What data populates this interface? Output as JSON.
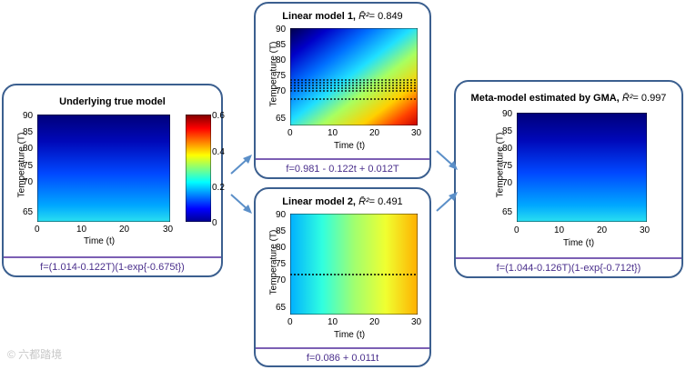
{
  "colormap_ticks": [
    "0.6",
    "0.4",
    "0.2",
    "0"
  ],
  "panels": {
    "true_model": {
      "title": "Underlying true model",
      "ylabel": "Temperature (T)",
      "xlabel": "Time (t)",
      "yticks": [
        "90",
        "85",
        "80",
        "75",
        "70",
        "65"
      ],
      "xticks": [
        "0",
        "10",
        "20",
        "30"
      ],
      "formula": "f=(1.014-0.122T)(1-exp{-0.675t})"
    },
    "linear1": {
      "title": "Linear model 1,",
      "r2_symbol": "R̄²",
      "r2_value": "= 0.849",
      "ylabel": "Temperature (T)",
      "xlabel": "Time (t)",
      "yticks": [
        "90",
        "85",
        "80",
        "75",
        "70",
        "65"
      ],
      "xticks": [
        "0",
        "10",
        "20",
        "30"
      ],
      "formula": "f=0.981 - 0.122t + 0.012T"
    },
    "linear2": {
      "title": "Linear model 2,",
      "r2_symbol": "R̄²",
      "r2_value": "= 0.491",
      "ylabel": "Temperature (T)",
      "xlabel": "Time (t)",
      "yticks": [
        "90",
        "85",
        "80",
        "75",
        "70",
        "65"
      ],
      "xticks": [
        "0",
        "10",
        "20",
        "30"
      ],
      "formula": "f=0.086 + 0.011t"
    },
    "meta": {
      "title": "Meta-model estimated by GMA,",
      "r2_symbol": "R̄²",
      "r2_value": "= 0.997",
      "ylabel": "Temperature (T)",
      "xlabel": "Time (t)",
      "yticks": [
        "90",
        "85",
        "80",
        "75",
        "70",
        "65"
      ],
      "xticks": [
        "0",
        "10",
        "20",
        "30"
      ],
      "formula": "f=(1.044-0.126T)(1-exp{-0.712t})"
    }
  },
  "watermark": "© 六都踏境"
}
